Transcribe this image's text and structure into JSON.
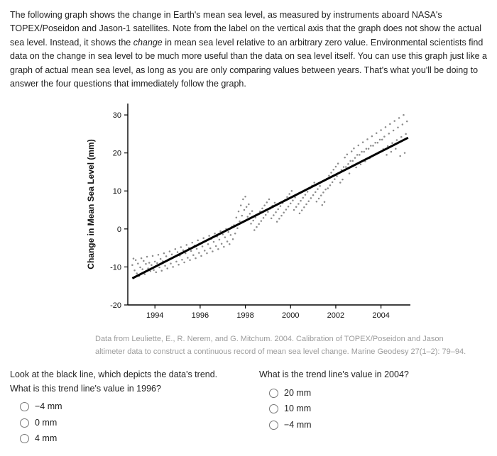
{
  "intro": {
    "pre": "The following graph shows the change in Earth's mean sea level, as measured by instruments aboard NASA's TOPEX/Poseidon and Jason-1 satellites. Note from the label on the vertical axis that the graph does not show the actual sea level. Instead, it shows the ",
    "em": "change",
    "post": " in mean sea level relative to an arbitrary zero value. Environmental scientists find data on the change in sea level to be much more useful than the data on sea level itself. You can use this graph just like a graph of actual mean sea level, as long as you are only comparing values between years. That's what you'll be doing to answer the four questions that immediately follow the graph."
  },
  "chart": {
    "type": "scatter",
    "ylabel": "Change in Mean Sea Level (mm)",
    "xlim": [
      1992.8,
      2005.3
    ],
    "ylim": [
      -20,
      33
    ],
    "yticks": [
      -20,
      -10,
      0,
      10,
      20,
      30
    ],
    "xticks": [
      1994,
      1996,
      1998,
      2000,
      2002,
      2004
    ],
    "background": "#ffffff",
    "scatter_color": "#8b8b8b",
    "scatter_radius": 1.25,
    "trend_color": "#000000",
    "trend_width": 3,
    "trend_line": {
      "x1": 1993.0,
      "y1": -13.0,
      "x2": 2005.2,
      "y2": 24.0
    },
    "axis_color": "#000000",
    "axis_label_fontsize": 12,
    "tick_label_fontsize": 11,
    "data": [
      [
        1993.0,
        -9.5
      ],
      [
        1993.05,
        -7.8
      ],
      [
        1993.1,
        -10.9
      ],
      [
        1993.15,
        -8.2
      ],
      [
        1993.2,
        -11.7
      ],
      [
        1993.25,
        -9.1
      ],
      [
        1993.3,
        -12.4
      ],
      [
        1993.35,
        -10.1
      ],
      [
        1993.4,
        -7.7
      ],
      [
        1993.45,
        -10.6
      ],
      [
        1993.5,
        -8.4
      ],
      [
        1993.55,
        -11.9
      ],
      [
        1993.6,
        -9.2
      ],
      [
        1993.65,
        -7.3
      ],
      [
        1993.7,
        -10.4
      ],
      [
        1993.75,
        -8.9
      ],
      [
        1993.8,
        -11.1
      ],
      [
        1993.85,
        -9.5
      ],
      [
        1993.9,
        -7.1
      ],
      [
        1993.95,
        -10.8
      ],
      [
        1994.0,
        -8.6
      ],
      [
        1994.05,
        -11.4
      ],
      [
        1994.1,
        -9.0
      ],
      [
        1994.15,
        -6.8
      ],
      [
        1994.2,
        -10.1
      ],
      [
        1994.25,
        -7.9
      ],
      [
        1994.3,
        -11.0
      ],
      [
        1994.35,
        -8.5
      ],
      [
        1994.4,
        -6.4
      ],
      [
        1994.45,
        -9.7
      ],
      [
        1994.5,
        -7.2
      ],
      [
        1994.55,
        -10.4
      ],
      [
        1994.6,
        -8.0
      ],
      [
        1994.65,
        -5.9
      ],
      [
        1994.7,
        -9.1
      ],
      [
        1994.75,
        -6.7
      ],
      [
        1994.8,
        -10.0
      ],
      [
        1994.85,
        -7.4
      ],
      [
        1994.9,
        -5.3
      ],
      [
        1994.95,
        -8.6
      ],
      [
        1995.0,
        -6.1
      ],
      [
        1995.05,
        -9.4
      ],
      [
        1995.1,
        -7.0
      ],
      [
        1995.15,
        -4.8
      ],
      [
        1995.2,
        -8.1
      ],
      [
        1995.25,
        -5.6
      ],
      [
        1995.3,
        -8.8
      ],
      [
        1995.35,
        -6.4
      ],
      [
        1995.4,
        -4.2
      ],
      [
        1995.45,
        -7.6
      ],
      [
        1995.5,
        -5.0
      ],
      [
        1995.55,
        -8.2
      ],
      [
        1995.6,
        -5.8
      ],
      [
        1995.65,
        -3.6
      ],
      [
        1995.7,
        -6.9
      ],
      [
        1995.75,
        -4.4
      ],
      [
        1995.8,
        -7.7
      ],
      [
        1995.85,
        -5.2
      ],
      [
        1995.9,
        -3.0
      ],
      [
        1995.95,
        -6.3
      ],
      [
        1996.0,
        -3.8
      ],
      [
        1996.05,
        -7.1
      ],
      [
        1996.1,
        -4.6
      ],
      [
        1996.15,
        -2.4
      ],
      [
        1996.2,
        -5.7
      ],
      [
        1996.25,
        -3.2
      ],
      [
        1996.3,
        -6.4
      ],
      [
        1996.35,
        -4.0
      ],
      [
        1996.4,
        -1.8
      ],
      [
        1996.45,
        -5.1
      ],
      [
        1996.5,
        -2.6
      ],
      [
        1996.55,
        -5.9
      ],
      [
        1996.6,
        -3.4
      ],
      [
        1996.65,
        -1.2
      ],
      [
        1996.7,
        -4.5
      ],
      [
        1996.75,
        -2.0
      ],
      [
        1996.8,
        -5.3
      ],
      [
        1996.85,
        -2.8
      ],
      [
        1996.9,
        -0.6
      ],
      [
        1996.95,
        -3.9
      ],
      [
        1997.0,
        -1.4
      ],
      [
        1997.05,
        -4.7
      ],
      [
        1997.1,
        -2.2
      ],
      [
        1997.15,
        0.0
      ],
      [
        1997.2,
        -3.3
      ],
      [
        1997.25,
        -0.8
      ],
      [
        1997.3,
        -4.0
      ],
      [
        1997.35,
        -1.6
      ],
      [
        1997.4,
        0.6
      ],
      [
        1997.45,
        -2.7
      ],
      [
        1997.5,
        1.0
      ],
      [
        1997.55,
        -1.2
      ],
      [
        1997.6,
        3.0
      ],
      [
        1997.65,
        0.2
      ],
      [
        1997.7,
        4.6
      ],
      [
        1997.75,
        2.0
      ],
      [
        1997.8,
        6.2
      ],
      [
        1997.85,
        3.5
      ],
      [
        1997.9,
        7.8
      ],
      [
        1997.95,
        5.0
      ],
      [
        1998.0,
        8.5
      ],
      [
        1998.05,
        5.8
      ],
      [
        1998.1,
        3.2
      ],
      [
        1998.15,
        6.5
      ],
      [
        1998.2,
        4.0
      ],
      [
        1998.25,
        1.4
      ],
      [
        1998.3,
        4.7
      ],
      [
        1998.35,
        2.2
      ],
      [
        1998.4,
        -0.3
      ],
      [
        1998.45,
        3.0
      ],
      [
        1998.5,
        0.5
      ],
      [
        1998.55,
        3.8
      ],
      [
        1998.6,
        1.3
      ],
      [
        1998.65,
        4.6
      ],
      [
        1998.7,
        2.1
      ],
      [
        1998.75,
        5.4
      ],
      [
        1998.8,
        2.9
      ],
      [
        1998.85,
        6.2
      ],
      [
        1998.9,
        3.7
      ],
      [
        1998.95,
        7.0
      ],
      [
        1999.0,
        4.5
      ],
      [
        1999.05,
        7.8
      ],
      [
        1999.1,
        5.3
      ],
      [
        1999.15,
        2.8
      ],
      [
        1999.2,
        6.1
      ],
      [
        1999.25,
        3.6
      ],
      [
        1999.3,
        6.9
      ],
      [
        1999.35,
        4.4
      ],
      [
        1999.4,
        1.9
      ],
      [
        1999.45,
        5.2
      ],
      [
        1999.5,
        2.7
      ],
      [
        1999.55,
        6.0
      ],
      [
        1999.6,
        3.5
      ],
      [
        1999.65,
        6.8
      ],
      [
        1999.7,
        4.3
      ],
      [
        1999.75,
        7.6
      ],
      [
        1999.8,
        5.1
      ],
      [
        1999.85,
        8.4
      ],
      [
        1999.9,
        5.9
      ],
      [
        1999.95,
        9.2
      ],
      [
        2000.0,
        6.7
      ],
      [
        2000.05,
        10.0
      ],
      [
        2000.1,
        7.5
      ],
      [
        2000.15,
        5.0
      ],
      [
        2000.2,
        8.3
      ],
      [
        2000.25,
        5.8
      ],
      [
        2000.3,
        9.1
      ],
      [
        2000.35,
        6.6
      ],
      [
        2000.4,
        4.1
      ],
      [
        2000.45,
        7.4
      ],
      [
        2000.5,
        4.9
      ],
      [
        2000.55,
        8.2
      ],
      [
        2000.6,
        5.7
      ],
      [
        2000.65,
        9.0
      ],
      [
        2000.7,
        6.5
      ],
      [
        2000.75,
        9.8
      ],
      [
        2000.8,
        7.3
      ],
      [
        2000.85,
        10.6
      ],
      [
        2000.9,
        8.1
      ],
      [
        2000.95,
        11.4
      ],
      [
        2001.0,
        8.9
      ],
      [
        2001.05,
        12.2
      ],
      [
        2001.1,
        9.7
      ],
      [
        2001.15,
        7.2
      ],
      [
        2001.2,
        10.5
      ],
      [
        2001.25,
        8.0
      ],
      [
        2001.3,
        11.3
      ],
      [
        2001.35,
        8.8
      ],
      [
        2001.4,
        6.3
      ],
      [
        2001.45,
        9.6
      ],
      [
        2001.5,
        7.1
      ],
      [
        2001.55,
        10.4
      ],
      [
        2001.6,
        13.2
      ],
      [
        2001.65,
        10.7
      ],
      [
        2001.7,
        14.0
      ],
      [
        2001.75,
        11.5
      ],
      [
        2001.8,
        14.8
      ],
      [
        2001.85,
        12.3
      ],
      [
        2001.9,
        15.6
      ],
      [
        2001.95,
        13.1
      ],
      [
        2002.0,
        16.4
      ],
      [
        2002.05,
        13.9
      ],
      [
        2002.1,
        17.2
      ],
      [
        2002.15,
        14.7
      ],
      [
        2002.2,
        12.2
      ],
      [
        2002.25,
        15.5
      ],
      [
        2002.3,
        13.0
      ],
      [
        2002.35,
        16.3
      ],
      [
        2002.4,
        18.8
      ],
      [
        2002.45,
        16.3
      ],
      [
        2002.5,
        19.6
      ],
      [
        2002.55,
        17.1
      ],
      [
        2002.6,
        14.6
      ],
      [
        2002.65,
        17.9
      ],
      [
        2002.7,
        20.4
      ],
      [
        2002.75,
        17.9
      ],
      [
        2002.8,
        21.2
      ],
      [
        2002.85,
        18.7
      ],
      [
        2002.9,
        16.2
      ],
      [
        2002.95,
        19.5
      ],
      [
        2003.0,
        22.0
      ],
      [
        2003.05,
        19.5
      ],
      [
        2003.1,
        17.0
      ],
      [
        2003.15,
        20.3
      ],
      [
        2003.2,
        22.8
      ],
      [
        2003.25,
        20.3
      ],
      [
        2003.3,
        17.8
      ],
      [
        2003.35,
        21.1
      ],
      [
        2003.4,
        23.6
      ],
      [
        2003.45,
        21.1
      ],
      [
        2003.5,
        18.6
      ],
      [
        2003.55,
        21.9
      ],
      [
        2003.6,
        24.4
      ],
      [
        2003.65,
        21.9
      ],
      [
        2003.7,
        19.4
      ],
      [
        2003.75,
        22.7
      ],
      [
        2003.8,
        25.2
      ],
      [
        2003.85,
        22.7
      ],
      [
        2003.9,
        20.2
      ],
      [
        2003.95,
        23.5
      ],
      [
        2004.0,
        26.0
      ],
      [
        2004.05,
        23.5
      ],
      [
        2004.1,
        21.0
      ],
      [
        2004.15,
        24.3
      ],
      [
        2004.2,
        26.8
      ],
      [
        2004.25,
        19.5
      ],
      [
        2004.3,
        21.8
      ],
      [
        2004.35,
        25.1
      ],
      [
        2004.4,
        27.6
      ],
      [
        2004.45,
        20.3
      ],
      [
        2004.5,
        22.6
      ],
      [
        2004.55,
        25.9
      ],
      [
        2004.6,
        28.4
      ],
      [
        2004.65,
        21.1
      ],
      [
        2004.7,
        23.4
      ],
      [
        2004.75,
        26.7
      ],
      [
        2004.8,
        29.2
      ],
      [
        2004.85,
        19.2
      ],
      [
        2004.9,
        24.2
      ],
      [
        2004.95,
        27.5
      ],
      [
        2005.0,
        30.0
      ],
      [
        2005.05,
        20.0
      ],
      [
        2005.1,
        25.0
      ],
      [
        2005.15,
        28.3
      ]
    ]
  },
  "caption": {
    "line1": "Data from Leuliette, E., R. Nerem, and G. Mitchum. 2004. Calibration of TOPEX/Poseidon and Jason",
    "line2": "altimeter data to construct a continuous record of mean sea level change. Marine Geodesy 27(1–2): 79–94."
  },
  "questions": {
    "q1": {
      "line1": "Look at the black line, which depicts the data's trend.",
      "line2": "What is this trend line's value in 1996?",
      "options": [
        "−4 mm",
        "0 mm",
        "4 mm"
      ]
    },
    "q2": {
      "text": "What is the trend line's value in 2004?",
      "options": [
        "20 mm",
        "10 mm",
        "−4 mm"
      ]
    }
  }
}
